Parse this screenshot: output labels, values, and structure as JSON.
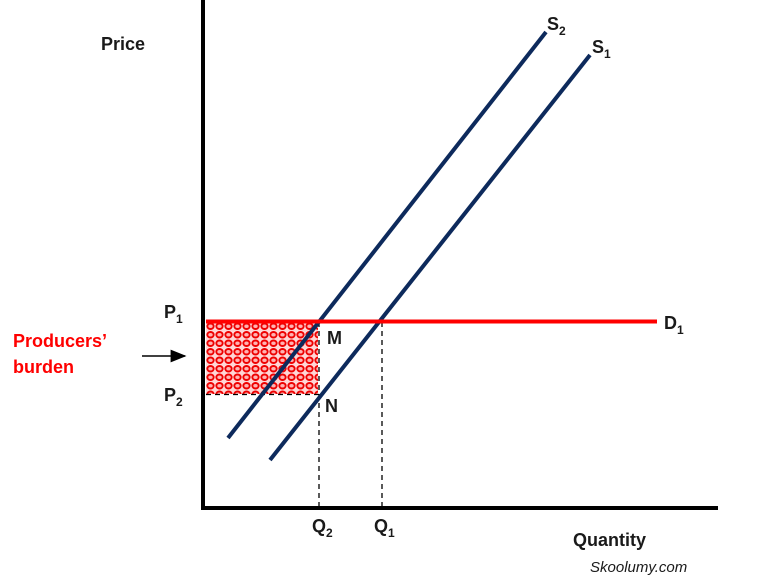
{
  "axes": {
    "y_label": "Price",
    "x_label": "Quantity"
  },
  "curves": {
    "s2": {
      "letter": "S",
      "sub": "2"
    },
    "s1": {
      "letter": "S",
      "sub": "1"
    },
    "d1": {
      "letter": "D",
      "sub": "1"
    }
  },
  "prices": {
    "p1": {
      "letter": "P",
      "sub": "1"
    },
    "p2": {
      "letter": "P",
      "sub": "2"
    }
  },
  "quantities": {
    "q2": {
      "letter": "Q",
      "sub": "2"
    },
    "q1": {
      "letter": "Q",
      "sub": "1"
    }
  },
  "points": {
    "m": "M",
    "n": "N"
  },
  "burden": {
    "line1": "Producers’",
    "line2": "burden"
  },
  "watermark": "Skoolumy.com",
  "colors": {
    "supply": "#0d2a5c",
    "demand": "#ff0000",
    "burden_text": "#ff0000",
    "axis": "#000000"
  }
}
